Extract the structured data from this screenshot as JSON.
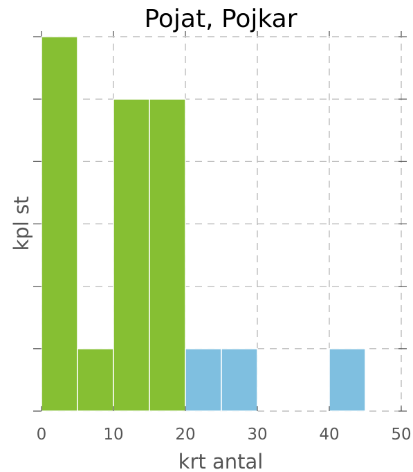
{
  "chart_data": {
    "type": "bar",
    "title": "Pojat, Pojkar",
    "xlabel": "krt antal",
    "ylabel": "kpl st",
    "xlim": [
      0,
      50
    ],
    "ylim": [
      0,
      6
    ],
    "x_ticks": [
      "0",
      "10",
      "20",
      "30",
      "40",
      "50"
    ],
    "x_tick_values": [
      0,
      10,
      20,
      30,
      40,
      50
    ],
    "y_tick_values": [
      0,
      1,
      2,
      3,
      4,
      5,
      6
    ],
    "grid": true,
    "series": [
      {
        "color": "#86bf33",
        "bins": [
          {
            "x0": 0,
            "x1": 5,
            "value": 6
          },
          {
            "x0": 5,
            "x1": 10,
            "value": 1
          },
          {
            "x0": 10,
            "x1": 15,
            "value": 5
          },
          {
            "x0": 15,
            "x1": 20,
            "value": 5
          }
        ]
      },
      {
        "color": "#7fbfe0",
        "bins": [
          {
            "x0": 20,
            "x1": 25,
            "value": 1
          },
          {
            "x0": 25,
            "x1": 30,
            "value": 1
          },
          {
            "x0": 40,
            "x1": 45,
            "value": 1
          }
        ]
      }
    ]
  }
}
